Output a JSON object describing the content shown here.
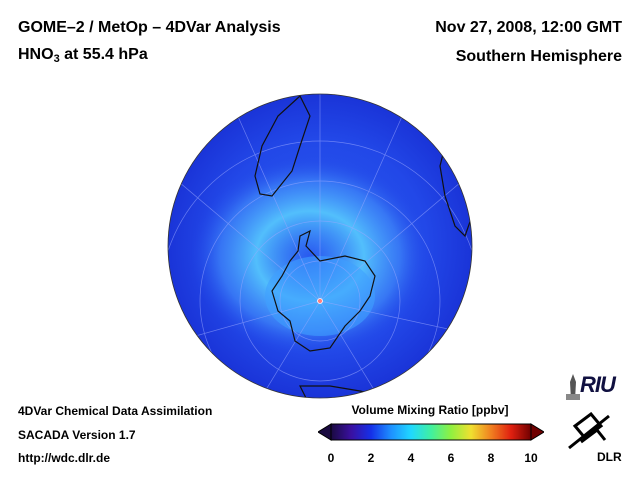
{
  "header": {
    "title_left": "GOME–2 / MetOp – 4DVar Analysis",
    "title_right": "Nov 27, 2008, 12:00 GMT",
    "species_main": "HNO",
    "species_subscript": "3",
    "species_level": " at 55.4 hPa",
    "region": "Southern Hemisphere"
  },
  "footer": {
    "line1": "4DVar Chemical Data Assimilation",
    "line2": "SACADA Version 1.7",
    "line3": "http://wdc.dlr.de"
  },
  "colorbar": {
    "title": "Volume Mixing Ratio [ppbv]",
    "ticks": [
      "0",
      "2",
      "4",
      "6",
      "8",
      "10"
    ],
    "colors": [
      "#1a0a40",
      "#3a10a0",
      "#1530e8",
      "#1e90ff",
      "#20d8ff",
      "#40f0a0",
      "#90f040",
      "#f0e030",
      "#f08020",
      "#e02010",
      "#700000"
    ]
  },
  "logos": {
    "riu": "RIU",
    "dlr": "DLR"
  },
  "map": {
    "projection": "orthographic, south pole view",
    "ocean_color": "#2246e6",
    "enhanced_ring_color": "#5ad2ff"
  }
}
